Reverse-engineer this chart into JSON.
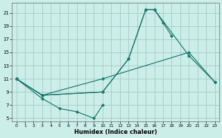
{
  "xlabel": "Humidex (Indice chaleur)",
  "background_color": "#cceee8",
  "grid_color": "#aacccc",
  "line_color": "#1a7a6e",
  "xlim": [
    -0.5,
    23.5
  ],
  "ylim": [
    4.5,
    22.5
  ],
  "xticks": [
    0,
    1,
    2,
    3,
    4,
    5,
    6,
    7,
    8,
    9,
    10,
    11,
    12,
    13,
    14,
    15,
    16,
    17,
    18,
    19,
    20,
    21,
    22,
    23
  ],
  "yticks": [
    5,
    7,
    9,
    11,
    13,
    15,
    17,
    19,
    21
  ],
  "lines": [
    {
      "comment": "top peak curve: 0->11, 3->8.5, 10->9, 13->14, 15->21.5, 16->21.5, 17->19.5, 18->17.5",
      "x": [
        0,
        3,
        10,
        13,
        15,
        16,
        17,
        18
      ],
      "y": [
        11,
        8.5,
        9,
        14,
        21.5,
        21.5,
        19.5,
        17.5
      ]
    },
    {
      "comment": "second curve: 0->11, 3->8.5, 10->9, 13->14, 15->21.5, 16->21.5, 20->14.5, 23->10.5",
      "x": [
        0,
        3,
        10,
        13,
        15,
        16,
        20,
        23
      ],
      "y": [
        11,
        8.5,
        9,
        14,
        21.5,
        21.5,
        14.5,
        10.5
      ]
    },
    {
      "comment": "nearly straight upper line: 0->11, 3->8.5, 10->11, 20->15, 23->10.5",
      "x": [
        0,
        3,
        10,
        20,
        23
      ],
      "y": [
        11,
        8.5,
        11,
        15,
        10.5
      ]
    },
    {
      "comment": "bottom dip line: 0->11, 3->8, 5->6.5, 7->6, 9->5, 10->7",
      "x": [
        0,
        3,
        5,
        7,
        9,
        10
      ],
      "y": [
        11,
        8,
        6.5,
        6,
        5,
        7
      ]
    }
  ]
}
